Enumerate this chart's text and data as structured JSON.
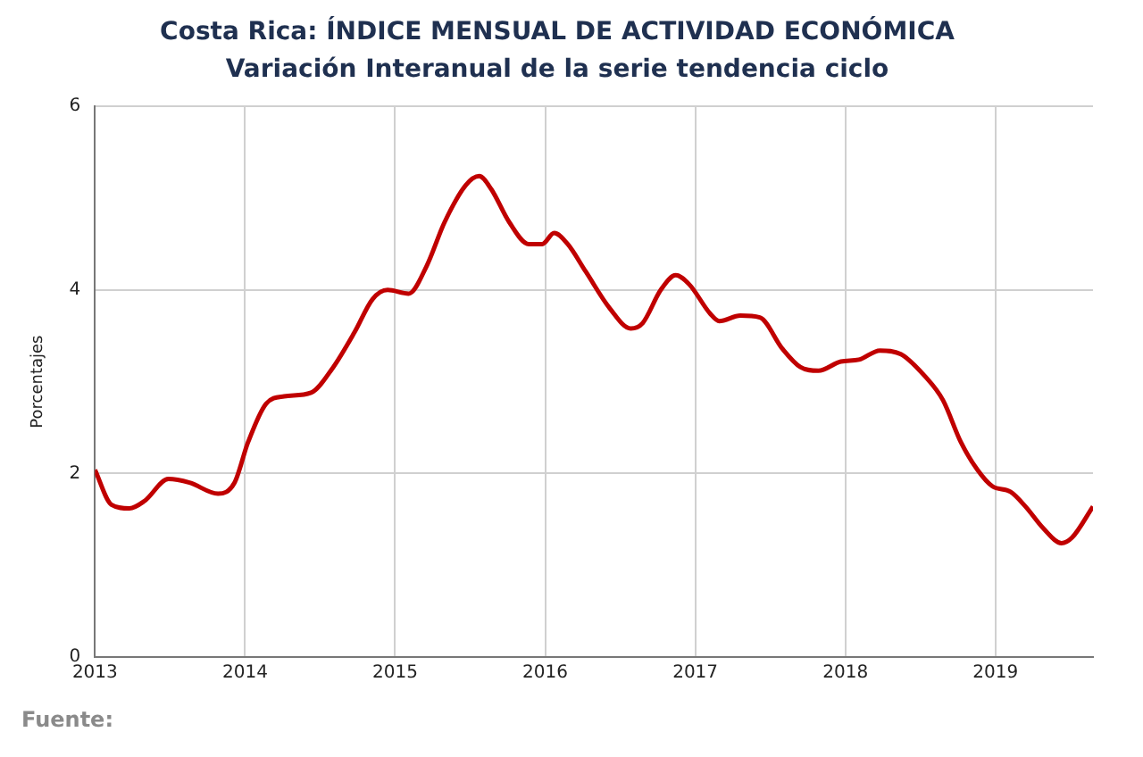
{
  "chart_data": {
    "type": "line",
    "title": "Costa Rica: ÍNDICE MENSUAL DE ACTIVIDAD ECONÓMICA",
    "subtitle": "Variación Interanual de la serie tendencia ciclo",
    "ylabel": "Porcentajes",
    "annotations": [
      "Fuente:"
    ],
    "x": [
      2013.0,
      2013.11,
      2013.23,
      2013.33,
      2013.49,
      2013.63,
      2013.82,
      2013.93,
      2014.02,
      2014.14,
      2014.26,
      2014.44,
      2014.58,
      2014.73,
      2014.85,
      2014.95,
      2015.09,
      2015.21,
      2015.33,
      2015.47,
      2015.56,
      2015.64,
      2015.76,
      2015.89,
      2015.98,
      2016.06,
      2016.15,
      2016.27,
      2016.43,
      2016.57,
      2016.65,
      2016.77,
      2016.87,
      2016.96,
      2017.1,
      2017.16,
      2017.3,
      2017.43,
      2017.58,
      2017.7,
      2017.82,
      2017.97,
      2018.09,
      2018.23,
      2018.37,
      2018.53,
      2018.65,
      2018.77,
      2018.88,
      2018.98,
      2019.1,
      2019.2,
      2019.32,
      2019.44,
      2019.51,
      2019.65
    ],
    "series": [
      {
        "color": "#c00000",
        "values": [
          2.04,
          1.66,
          1.62,
          1.7,
          1.94,
          1.9,
          1.78,
          1.9,
          2.34,
          2.76,
          2.84,
          2.88,
          3.14,
          3.54,
          3.9,
          4.0,
          3.96,
          4.26,
          4.74,
          5.14,
          5.24,
          5.1,
          4.74,
          4.5,
          4.5,
          4.62,
          4.5,
          4.2,
          3.8,
          3.58,
          3.64,
          4.0,
          4.16,
          4.06,
          3.74,
          3.66,
          3.72,
          3.7,
          3.36,
          3.16,
          3.12,
          3.22,
          3.24,
          3.34,
          3.3,
          3.06,
          2.8,
          2.34,
          2.04,
          1.86,
          1.8,
          1.64,
          1.4,
          1.24,
          1.3,
          1.64
        ]
      }
    ],
    "xlim": [
      2013,
      2019.65
    ],
    "xticks": [
      2013,
      2014,
      2015,
      2016,
      2017,
      2018,
      2019
    ],
    "ylim": [
      0,
      6
    ],
    "yticks": [
      0,
      2,
      4,
      6
    ],
    "grid": true,
    "legend": false,
    "marker": "none",
    "line_style": "solid"
  }
}
